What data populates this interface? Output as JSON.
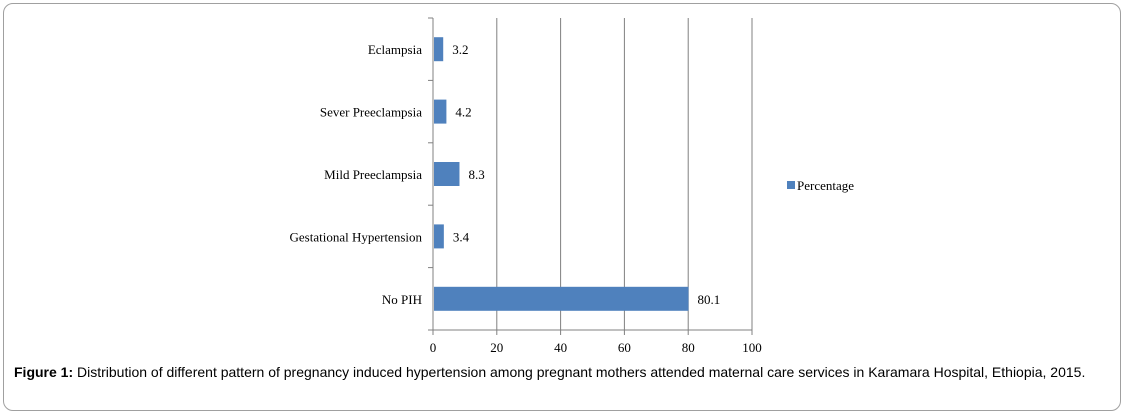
{
  "chart_data": {
    "type": "bar",
    "orientation": "horizontal",
    "categories": [
      "Eclampsia",
      "Sever Preeclampsia",
      "Mild Preeclampsia",
      "Gestational Hypertension",
      "No PIH"
    ],
    "series": [
      {
        "name": "Percentage",
        "values": [
          3.2,
          4.2,
          8.3,
          3.4,
          80.1
        ]
      }
    ],
    "data_labels": [
      "3.2",
      "4.2",
      "8.3",
      "3.4",
      "80.1"
    ],
    "xlim": [
      0,
      100
    ],
    "x_ticks": [
      "0",
      "20",
      "40",
      "60",
      "80",
      "100"
    ],
    "grid": "vertical",
    "legend": "right",
    "bar_color": "#4f81bd"
  },
  "caption": {
    "label": "Figure 1:",
    "text": " Distribution of different pattern of pregnancy induced hypertension among pregnant mothers attended maternal care services in Karamara Hospital, Ethiopia, 2015."
  }
}
